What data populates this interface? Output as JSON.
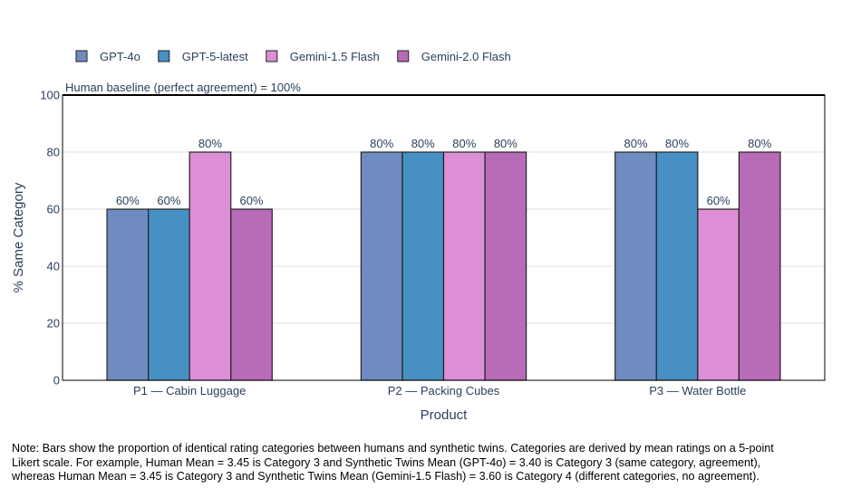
{
  "chart_data": {
    "type": "bar",
    "categories": [
      "P1 — Cabin Luggage",
      "P2 — Packing Cubes",
      "P3 — Water Bottle"
    ],
    "series": [
      {
        "name": "GPT-4o",
        "values": [
          60,
          80,
          80
        ],
        "color": "#6f8cc0"
      },
      {
        "name": "GPT-5-latest",
        "values": [
          60,
          80,
          80
        ],
        "color": "#4690c3"
      },
      {
        "name": "Gemini-1.5 Flash",
        "values": [
          80,
          80,
          60
        ],
        "color": "#dc8fd5"
      },
      {
        "name": "Gemini-2.0 Flash",
        "values": [
          60,
          80,
          80
        ],
        "color": "#b86bb6"
      }
    ],
    "data_labels": [
      [
        "60%",
        "80%",
        "80%"
      ],
      [
        "60%",
        "80%",
        "80%"
      ],
      [
        "80%",
        "80%",
        "60%"
      ],
      [
        "60%",
        "80%",
        "80%"
      ]
    ],
    "xlabel": "Product",
    "ylabel": "% Same Category",
    "ylim": [
      0,
      100
    ],
    "yticks": [
      0,
      20,
      40,
      60,
      80,
      100
    ],
    "grid": true,
    "legend_position": "top-left",
    "reference_line": {
      "value": 100,
      "label": "Human baseline (perfect agreement) = 100%"
    }
  },
  "note": {
    "lines": [
      "Note: Bars show the proportion of identical rating categories between humans and synthetic twins. Categories are derived by mean ratings on a 5-point",
      "Likert scale. For example, Human Mean = 3.45 is Category 3 and Synthetic Twins Mean (GPT-4o) = 3.40 is Category 3 (same category, agreement),",
      "whereas Human Mean = 3.45 is Category 3 and Synthetic Twins Mean (Gemini-1.5 Flash) = 3.60 is Category 4 (different categories, no agreement)."
    ]
  }
}
